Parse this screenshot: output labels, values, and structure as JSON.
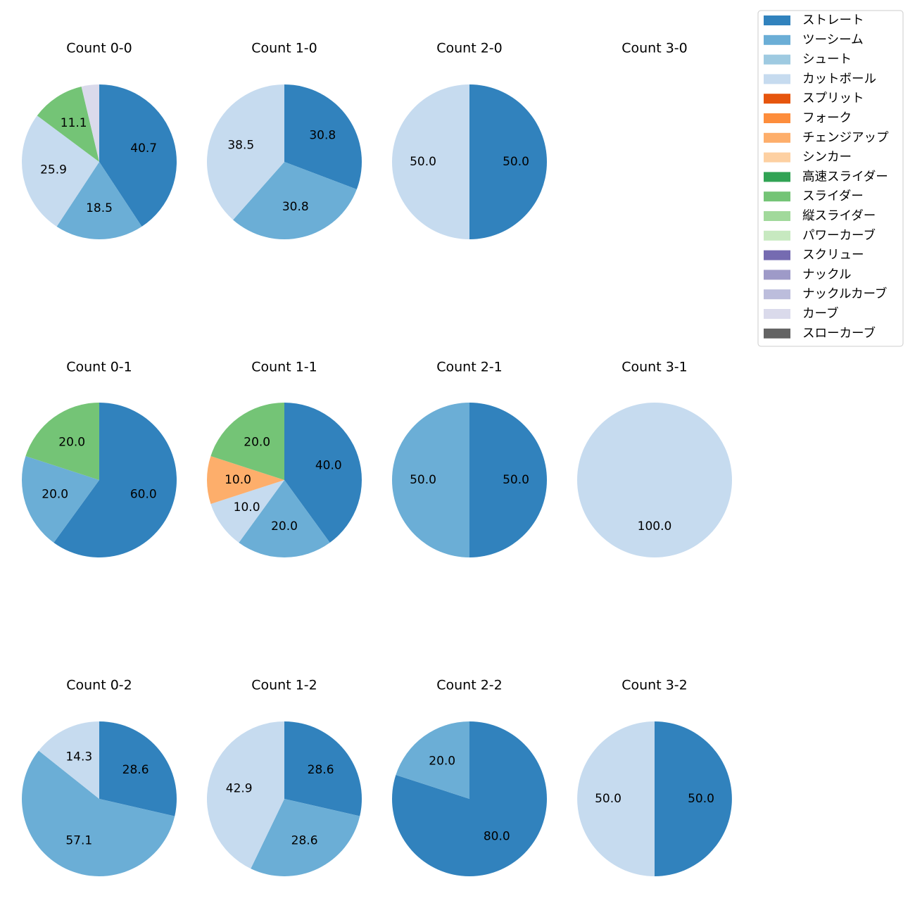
{
  "chart_data": {
    "type": "pie",
    "legend_position": "top-right",
    "categories": [
      "ストレート",
      "ツーシーム",
      "シュート",
      "カットボール",
      "スプリット",
      "フォーク",
      "チェンジアップ",
      "シンカー",
      "高速スライダー",
      "スライダー",
      "縦スライダー",
      "パワーカーブ",
      "スクリュー",
      "ナックル",
      "ナックルカーブ",
      "カーブ",
      "スローカーブ"
    ],
    "colors": [
      "#3182bd",
      "#6baed6",
      "#9ecae1",
      "#c6dbef",
      "#e6550d",
      "#fd8d3c",
      "#fdae6b",
      "#fdd0a2",
      "#31a354",
      "#74c476",
      "#a1d99b",
      "#c7e9c0",
      "#756bb1",
      "#9e9ac8",
      "#bcbddc",
      "#dadaeb",
      "#636363"
    ],
    "charts": [
      {
        "title": "Count 0-0",
        "slices": [
          {
            "category": "ストレート",
            "value": 40.7
          },
          {
            "category": "ツーシーム",
            "value": 18.5
          },
          {
            "category": "カットボール",
            "value": 25.9
          },
          {
            "category": "スライダー",
            "value": 11.1
          },
          {
            "category": "カーブ",
            "value": 3.7
          }
        ],
        "labels": [
          "40.7",
          "18.5",
          "25.9",
          "11.1",
          ""
        ]
      },
      {
        "title": "Count 1-0",
        "slices": [
          {
            "category": "ストレート",
            "value": 30.8
          },
          {
            "category": "ツーシーム",
            "value": 30.8
          },
          {
            "category": "カットボール",
            "value": 38.5
          }
        ],
        "labels": [
          "30.8",
          "30.8",
          "38.5"
        ]
      },
      {
        "title": "Count 2-0",
        "slices": [
          {
            "category": "ストレート",
            "value": 50.0
          },
          {
            "category": "カットボール",
            "value": 50.0
          }
        ],
        "labels": [
          "50.0",
          "50.0"
        ]
      },
      {
        "title": "Count 3-0",
        "slices": [],
        "labels": []
      },
      {
        "title": "Count 0-1",
        "slices": [
          {
            "category": "ストレート",
            "value": 60.0
          },
          {
            "category": "ツーシーム",
            "value": 20.0
          },
          {
            "category": "スライダー",
            "value": 20.0
          }
        ],
        "labels": [
          "60.0",
          "20.0",
          "20.0"
        ]
      },
      {
        "title": "Count 1-1",
        "slices": [
          {
            "category": "ストレート",
            "value": 40.0
          },
          {
            "category": "ツーシーム",
            "value": 20.0
          },
          {
            "category": "カットボール",
            "value": 10.0
          },
          {
            "category": "チェンジアップ",
            "value": 10.0
          },
          {
            "category": "スライダー",
            "value": 20.0
          }
        ],
        "labels": [
          "40.0",
          "20.0",
          "10.0",
          "10.0",
          "20.0"
        ]
      },
      {
        "title": "Count 2-1",
        "slices": [
          {
            "category": "ストレート",
            "value": 50.0
          },
          {
            "category": "ツーシーム",
            "value": 50.0
          }
        ],
        "labels": [
          "50.0",
          "50.0"
        ]
      },
      {
        "title": "Count 3-1",
        "slices": [
          {
            "category": "カットボール",
            "value": 100.0
          }
        ],
        "labels": [
          "100.0"
        ]
      },
      {
        "title": "Count 0-2",
        "slices": [
          {
            "category": "ストレート",
            "value": 28.6
          },
          {
            "category": "ツーシーム",
            "value": 57.1
          },
          {
            "category": "カットボール",
            "value": 14.3
          }
        ],
        "labels": [
          "28.6",
          "57.1",
          "14.3"
        ]
      },
      {
        "title": "Count 1-2",
        "slices": [
          {
            "category": "ストレート",
            "value": 28.6
          },
          {
            "category": "ツーシーム",
            "value": 28.6
          },
          {
            "category": "カットボール",
            "value": 42.9
          }
        ],
        "labels": [
          "28.6",
          "28.6",
          "42.9"
        ]
      },
      {
        "title": "Count 2-2",
        "slices": [
          {
            "category": "ストレート",
            "value": 80.0
          },
          {
            "category": "ツーシーム",
            "value": 20.0
          }
        ],
        "labels": [
          "80.0",
          "20.0"
        ]
      },
      {
        "title": "Count 3-2",
        "slices": [
          {
            "category": "ストレート",
            "value": 50.0
          },
          {
            "category": "カットボール",
            "value": 50.0
          }
        ],
        "labels": [
          "50.0",
          "50.0"
        ]
      }
    ]
  }
}
